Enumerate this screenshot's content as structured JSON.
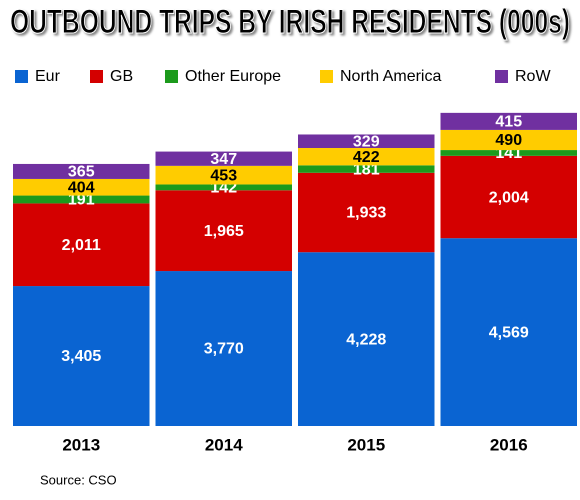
{
  "chart_data": {
    "type": "stacked_bar",
    "title": "OUTBOUND TRIPS BY IRISH RESIDENTS (000s)",
    "categories": [
      "2013",
      "2014",
      "2015",
      "2016"
    ],
    "series": [
      {
        "name": "Eur",
        "color": "#0a64d2",
        "values": [
          3405,
          3770,
          4228,
          4569
        ],
        "value_labels": [
          "3,405",
          "3,770",
          "4,228",
          "4,569"
        ]
      },
      {
        "name": "GB",
        "color": "#d40000",
        "values": [
          2011,
          1965,
          1933,
          2004
        ],
        "value_labels": [
          "2,011",
          "1,965",
          "1,933",
          "2,004"
        ]
      },
      {
        "name": "Other Europe",
        "color": "#1c9a1c",
        "values": [
          191,
          142,
          181,
          141
        ]
      },
      {
        "name": "North America",
        "color": "#ffcc00",
        "values": [
          404,
          453,
          422,
          490
        ]
      },
      {
        "name": "RoW",
        "color": "#7030a0",
        "values": [
          365,
          347,
          329,
          415
        ]
      }
    ],
    "source": "Source: CSO"
  }
}
